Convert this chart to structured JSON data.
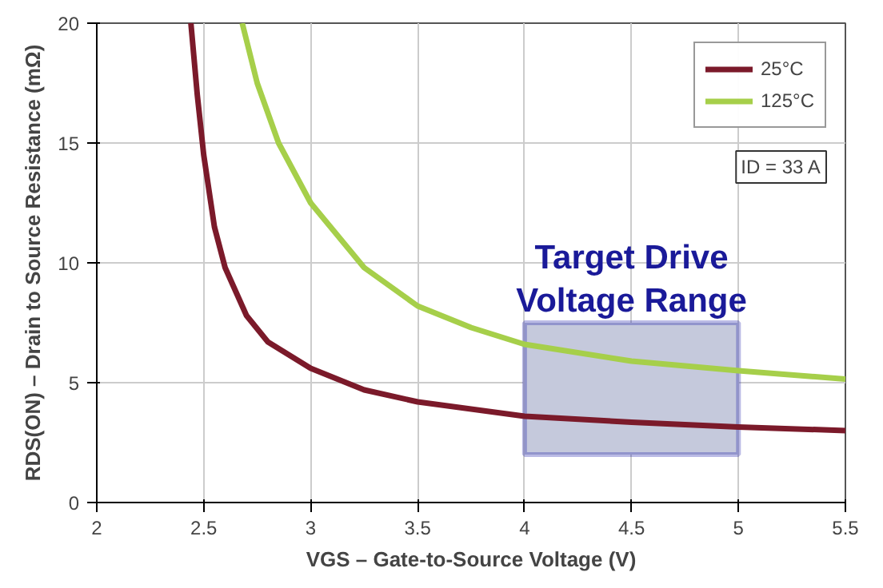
{
  "chart_data": {
    "type": "line",
    "xlabel": "VGS – Gate-to-Source Voltage (V)",
    "ylabel": "RDS(ON) – Drain to Source Resistance (mΩ)",
    "xlim": [
      2,
      5.5
    ],
    "xticks": [
      2,
      2.5,
      3,
      3.5,
      4,
      4.5,
      5,
      5.5
    ],
    "ylim": [
      0,
      20
    ],
    "yticks": [
      0,
      5,
      10,
      15,
      20
    ],
    "grid": true,
    "legend": "top right",
    "line_style": "solid",
    "series": [
      {
        "name": "25°C",
        "color": "#7b1a2a",
        "x": [
          2.44,
          2.47,
          2.5,
          2.55,
          2.6,
          2.7,
          2.8,
          3.0,
          3.25,
          3.5,
          4.0,
          4.5,
          5.0,
          5.5
        ],
        "values": [
          20,
          17,
          14.5,
          11.5,
          9.8,
          7.8,
          6.7,
          5.6,
          4.7,
          4.2,
          3.6,
          3.35,
          3.15,
          3.0
        ]
      },
      {
        "name": "125°C",
        "color": "#a6cf4a",
        "x": [
          2.68,
          2.75,
          2.85,
          3.0,
          3.25,
          3.5,
          3.75,
          4.0,
          4.5,
          5.0,
          5.5
        ],
        "values": [
          20,
          17.5,
          15,
          12.5,
          9.8,
          8.2,
          7.3,
          6.6,
          5.9,
          5.5,
          5.15
        ]
      }
    ],
    "bands": [
      {
        "axis": "x",
        "from": 4,
        "to": 5,
        "label": "Target Drive Voltage Range",
        "color": "#c5c9dc"
      }
    ],
    "annotations": [
      "ID = 33 A"
    ]
  }
}
